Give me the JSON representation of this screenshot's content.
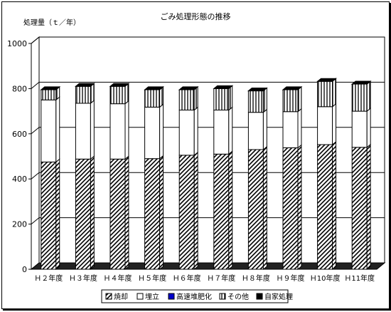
{
  "chart_data": {
    "type": "bar",
    "stacked": true,
    "three_d": true,
    "title": "ごみ処理形態の推移",
    "ylabel": "処理量（ｔ／年）",
    "xlabel": "",
    "ylim": [
      0,
      1000
    ],
    "yticks": [
      0,
      200,
      400,
      600,
      800,
      1000
    ],
    "grid": true,
    "legend_position": "bottom",
    "categories": [
      "Ｈ２年度",
      "Ｈ３年度",
      "Ｈ４年度",
      "Ｈ５年度",
      "Ｈ６年度",
      "Ｈ７年度",
      "Ｈ８年度",
      "Ｈ９年度",
      "Ｈ10年度",
      "Ｈ11年度"
    ],
    "series": [
      {
        "name": "焼却",
        "pattern": "diagonal-hatch",
        "color": "#000000",
        "values": [
          475,
          488,
          488,
          490,
          505,
          510,
          530,
          538,
          552,
          540
        ]
      },
      {
        "name": "埋立",
        "pattern": "solid",
        "color": "#ffffff",
        "values": [
          275,
          247,
          245,
          228,
          200,
          195,
          165,
          160,
          168,
          160
        ]
      },
      {
        "name": "高速堆肥化",
        "pattern": "solid",
        "color": "#0000cc",
        "values": [
          0,
          0,
          0,
          0,
          0,
          0,
          0,
          0,
          0,
          0
        ]
      },
      {
        "name": "その他",
        "pattern": "vertical-hatch",
        "color": "#000000",
        "values": [
          45,
          75,
          77,
          77,
          90,
          95,
          95,
          97,
          112,
          120
        ]
      },
      {
        "name": "自家処理",
        "pattern": "solid",
        "color": "#000000",
        "values": [
          0,
          0,
          0,
          0,
          0,
          0,
          0,
          0,
          0,
          0
        ]
      }
    ]
  }
}
